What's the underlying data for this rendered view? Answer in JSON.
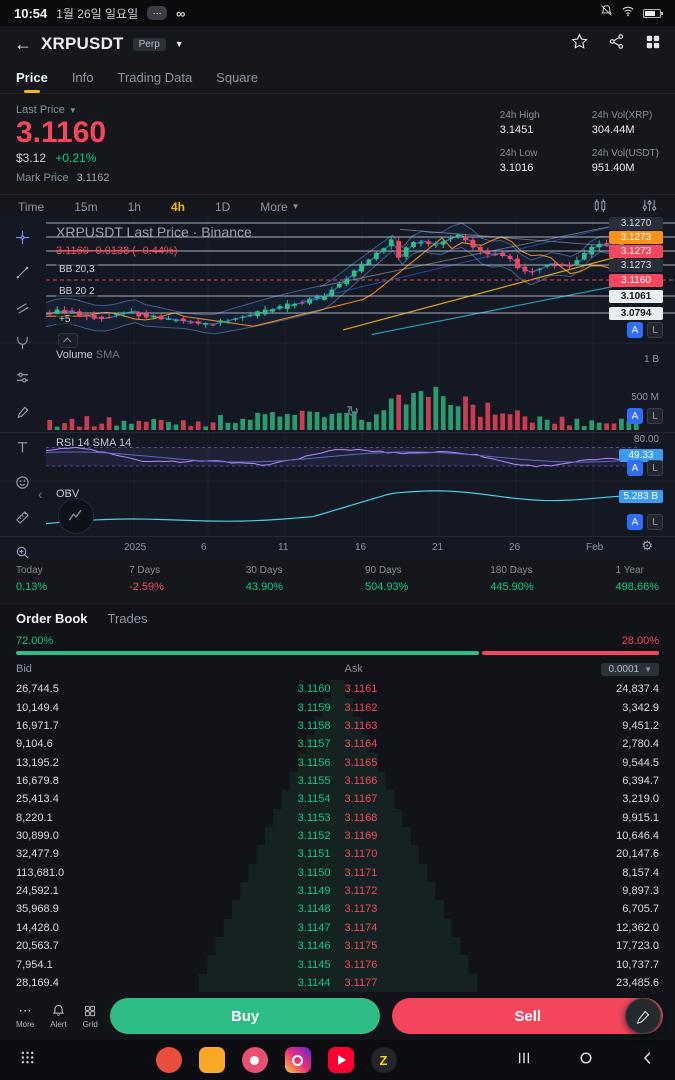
{
  "status_bar": {
    "time": "10:54",
    "date": "1월 26일 일요일"
  },
  "header": {
    "symbol": "XRPUSDT",
    "contract_badge": "Perp"
  },
  "nav_tabs": {
    "items": [
      {
        "label": "Price",
        "active": true
      },
      {
        "label": "Info",
        "active": false
      },
      {
        "label": "Trading Data",
        "active": false
      },
      {
        "label": "Square",
        "active": false
      }
    ]
  },
  "price_panel": {
    "last_price_label": "Last Price",
    "last_price": "3.1160",
    "usd": "$3.12",
    "change": "+0.21%",
    "mark_price_label": "Mark Price",
    "mark_price": "3.1162",
    "stats": [
      {
        "label": "24h High",
        "value": "3.1451"
      },
      {
        "label": "24h Vol(XRP)",
        "value": "304.44M"
      },
      {
        "label": "24h Low",
        "value": "3.1016"
      },
      {
        "label": "24h Vol(USDT)",
        "value": "951.40M"
      }
    ]
  },
  "timeframe_bar": {
    "items": [
      {
        "label": "Time",
        "selected": false
      },
      {
        "label": "15m",
        "selected": false
      },
      {
        "label": "1h",
        "selected": false
      },
      {
        "label": "4h",
        "selected": true
      },
      {
        "label": "1D",
        "selected": false
      }
    ],
    "more_label": "More"
  },
  "chart": {
    "watermark": "XRPUSDT Last Price · Binance",
    "price_line_label": "3.1160 -0.0138 ( -0.44%)",
    "indicator_labels": [
      "BB 20,3",
      "BB 20 2",
      "+5"
    ],
    "price_scale": [
      {
        "value": "3.1270",
        "style": "plain"
      },
      {
        "value": "3.1273",
        "style": "orange"
      },
      {
        "value": "3.1273",
        "style": "red"
      },
      {
        "value": "3.1273",
        "style": "plain"
      },
      {
        "value": "3.1160",
        "style": "red"
      },
      {
        "value": "3.1061",
        "style": "white"
      },
      {
        "value": "3.0794",
        "style": "white"
      }
    ],
    "panes": {
      "volume": {
        "label": "Volume",
        "sub": "SMA",
        "axis": [
          "1 B",
          "500 M"
        ]
      },
      "rsi": {
        "label": "RSI 14 SMA 14",
        "value": "49.33",
        "upper": "80.00"
      },
      "obv": {
        "label": "OBV",
        "value": "5.283 B"
      }
    },
    "x_axis": [
      "2025",
      "6",
      "11",
      "16",
      "21",
      "26",
      "Feb"
    ],
    "toggle_a": "A",
    "toggle_l": "L",
    "toolbar": [
      "crosshair",
      "trendline",
      "channels",
      "pitchfork",
      "tune",
      "brush",
      "text",
      "emoji",
      "measure",
      "zoom"
    ]
  },
  "performance": {
    "items": [
      {
        "label": "Today",
        "value": "0.13%",
        "positive": true
      },
      {
        "label": "7 Days",
        "value": "-2.59%",
        "positive": false
      },
      {
        "label": "30 Days",
        "value": "43.90%",
        "positive": true
      },
      {
        "label": "90 Days",
        "value": "504.93%",
        "positive": true
      },
      {
        "label": "180 Days",
        "value": "445.90%",
        "positive": true
      },
      {
        "label": "1 Year",
        "value": "498.66%",
        "positive": true
      }
    ]
  },
  "orderbook": {
    "tabs": [
      {
        "label": "Order Book",
        "active": true
      },
      {
        "label": "Trades",
        "active": false
      }
    ],
    "buy_ratio": "72.00%",
    "sell_ratio": "28.00%",
    "bid_label": "Bid",
    "ask_label": "Ask",
    "precision": "0.0001",
    "rows": [
      {
        "bq": "26,744.5",
        "bp": "3.1160",
        "ap": "3.1161",
        "aq": "24,837.4"
      },
      {
        "bq": "10,149.4",
        "bp": "3.1159",
        "ap": "3.1162",
        "aq": "3,342.9"
      },
      {
        "bq": "16,971.7",
        "bp": "3.1158",
        "ap": "3.1163",
        "aq": "9,451.2"
      },
      {
        "bq": "9,104.6",
        "bp": "3.1157",
        "ap": "3.1164",
        "aq": "2,780.4"
      },
      {
        "bq": "13,195.2",
        "bp": "3.1156",
        "ap": "3.1165",
        "aq": "9,544.5"
      },
      {
        "bq": "16,679.8",
        "bp": "3.1155",
        "ap": "3.1166",
        "aq": "6,394.7"
      },
      {
        "bq": "25,413.4",
        "bp": "3.1154",
        "ap": "3.1167",
        "aq": "3,219.0"
      },
      {
        "bq": "8,220.1",
        "bp": "3.1153",
        "ap": "3.1168",
        "aq": "9,915.1"
      },
      {
        "bq": "30,899.0",
        "bp": "3.1152",
        "ap": "3.1169",
        "aq": "10,646.4"
      },
      {
        "bq": "32,477.9",
        "bp": "3.1151",
        "ap": "3.1170",
        "aq": "20,147.6"
      },
      {
        "bq": "113,681.0",
        "bp": "3.1150",
        "ap": "3.1171",
        "aq": "8,157.4"
      },
      {
        "bq": "24,592.1",
        "bp": "3.1149",
        "ap": "3.1172",
        "aq": "9,897.3"
      },
      {
        "bq": "35,968.9",
        "bp": "3.1148",
        "ap": "3.1173",
        "aq": "6,705.7"
      },
      {
        "bq": "14,428.0",
        "bp": "3.1147",
        "ap": "3.1174",
        "aq": "12,362.0"
      },
      {
        "bq": "20,563.7",
        "bp": "3.1146",
        "ap": "3.1175",
        "aq": "17,723.0"
      },
      {
        "bq": "7,954.1",
        "bp": "3.1145",
        "ap": "3.1176",
        "aq": "10,737.7"
      },
      {
        "bq": "28,169.4",
        "bp": "3.1144",
        "ap": "3.1177",
        "aq": "23,485.6"
      }
    ]
  },
  "action_bar": {
    "more": "More",
    "alert": "Alert",
    "grid": "Grid",
    "buy": "Buy",
    "sell": "Sell"
  },
  "taskbar": {
    "apps": [
      {
        "name": "app-icon-1",
        "shape": "circle",
        "color": "#ea4e3d"
      },
      {
        "name": "app-icon-2",
        "shape": "rounded",
        "color": "#f9a825"
      },
      {
        "name": "app-icon-3",
        "shape": "flower",
        "color": "#e94f6e"
      },
      {
        "name": "app-icon-4",
        "shape": "insta",
        "colors": [
          "#f9ce34",
          "#ee2a7b",
          "#6228d7"
        ]
      },
      {
        "name": "app-icon-5",
        "shape": "play",
        "color": "#ff0033"
      },
      {
        "name": "app-icon-6",
        "shape": "letter",
        "color": "#23242c",
        "letter": "Z",
        "letter_color": "#ffd60a"
      }
    ]
  }
}
